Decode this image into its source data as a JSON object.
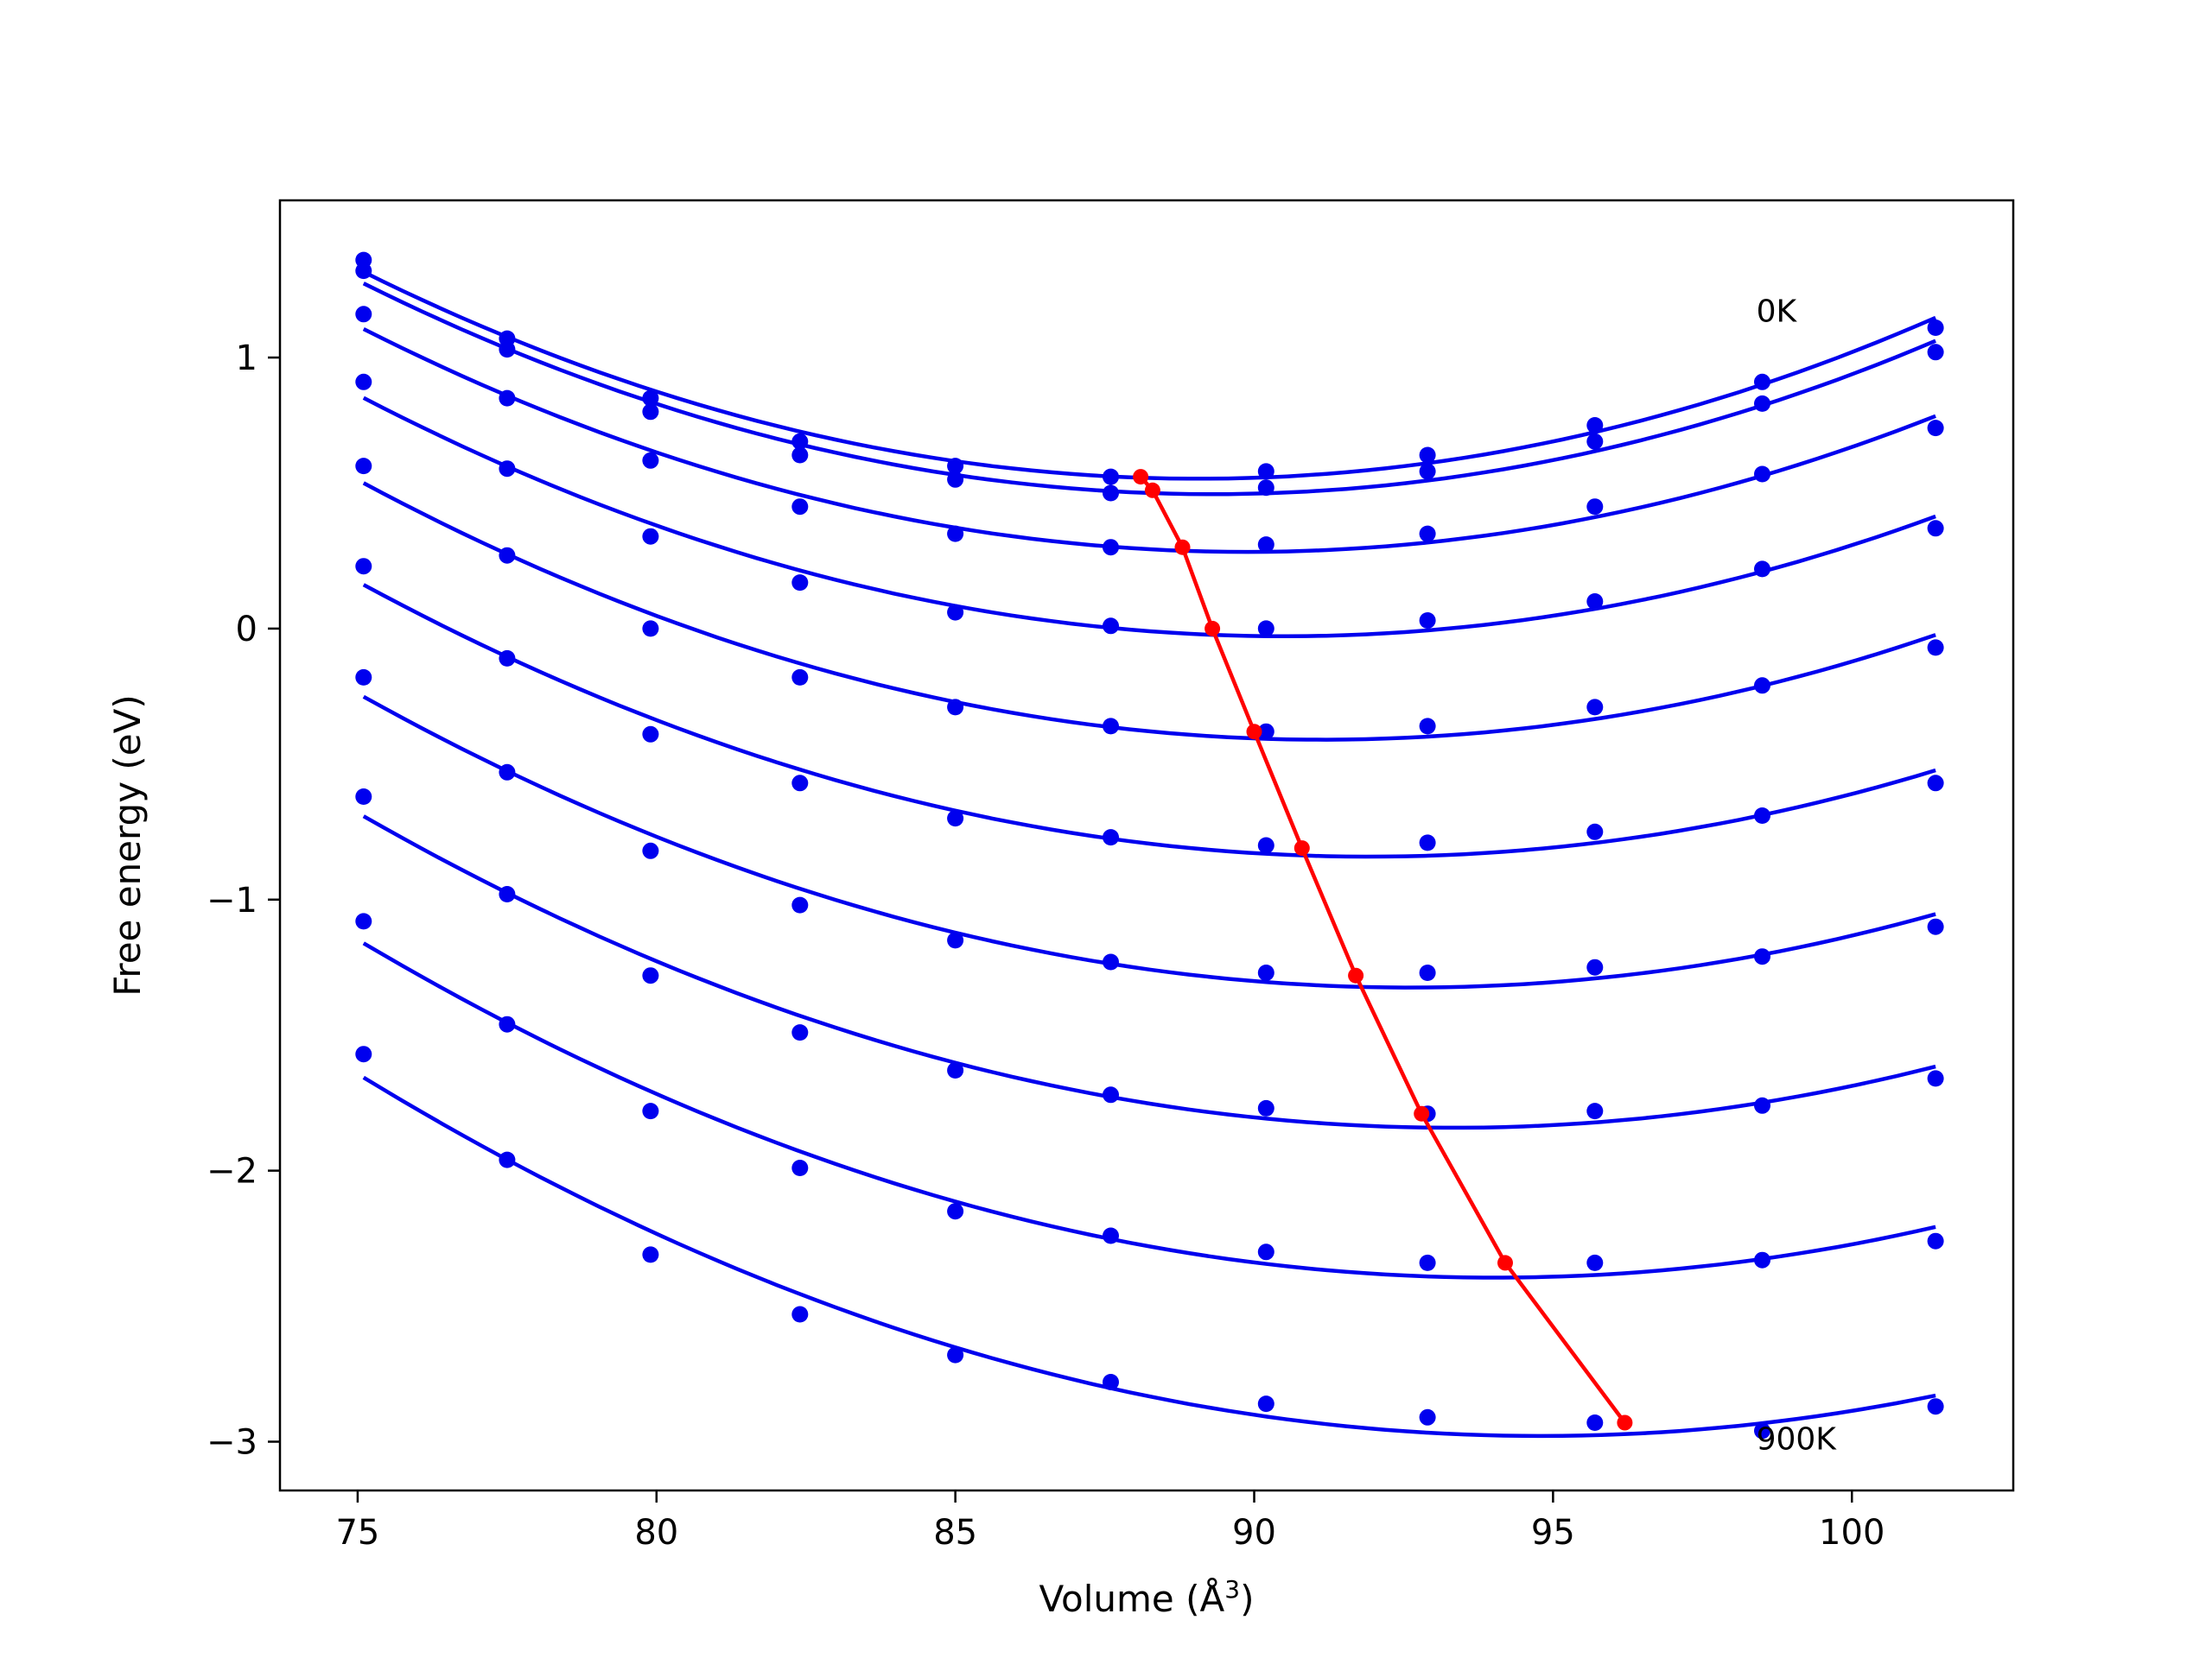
{
  "chart_data": {
    "type": "line",
    "xlabel": "Volume (Å",
    "xlabel_sup": "3",
    "xlabel_end": ")",
    "ylabel": "Free energy (eV)",
    "xlim": [
      73.7,
      102.7
    ],
    "ylim": [
      -3.18,
      1.58
    ],
    "xticks": [
      75,
      80,
      85,
      90,
      95,
      100
    ],
    "xtick_labels": [
      "75",
      "80",
      "85",
      "90",
      "95",
      "100"
    ],
    "yticks": [
      1,
      0,
      -1,
      -2,
      -3
    ],
    "ytick_labels": [
      "1",
      "0",
      "−1",
      "−2",
      "−3"
    ],
    "grid": false,
    "colors": {
      "curves": "#0000ee",
      "minima": "#ff0000",
      "axes": "#000000"
    },
    "annotations": [
      {
        "text": "0K",
        "x": 98.4,
        "y": 1.17
      },
      {
        "text": "900K",
        "x": 98.4,
        "y": -2.99
      }
    ],
    "x": [
      75.1,
      77.5,
      79.9,
      82.4,
      85.0,
      87.6,
      90.2,
      92.9,
      95.7,
      98.5,
      101.4
    ],
    "series": [
      {
        "points": [
          1.36,
          1.07,
          0.85,
          0.69,
          0.6,
          0.56,
          0.58,
          0.64,
          0.75,
          0.91,
          1.11
        ]
      },
      {
        "points": [
          1.32,
          1.03,
          0.8,
          0.64,
          0.55,
          0.5,
          0.52,
          0.58,
          0.69,
          0.83,
          1.02
        ]
      },
      {
        "points": [
          1.16,
          0.85,
          0.62,
          0.45,
          0.35,
          0.3,
          0.31,
          0.35,
          0.45,
          0.57,
          0.74
        ]
      },
      {
        "points": [
          0.91,
          0.59,
          0.34,
          0.17,
          0.06,
          0.01,
          0.0,
          0.03,
          0.1,
          0.22,
          0.37
        ]
      },
      {
        "points": [
          0.6,
          0.27,
          0.0,
          -0.18,
          -0.29,
          -0.36,
          -0.38,
          -0.36,
          -0.29,
          -0.21,
          -0.07
        ]
      },
      {
        "points": [
          0.23,
          -0.11,
          -0.39,
          -0.57,
          -0.7,
          -0.77,
          -0.8,
          -0.79,
          -0.75,
          -0.69,
          -0.57
        ]
      },
      {
        "points": [
          -0.18,
          -0.53,
          -0.82,
          -1.02,
          -1.15,
          -1.23,
          -1.27,
          -1.27,
          -1.25,
          -1.21,
          -1.1
        ]
      },
      {
        "points": [
          -0.62,
          -0.98,
          -1.28,
          -1.49,
          -1.63,
          -1.72,
          -1.77,
          -1.79,
          -1.78,
          -1.76,
          -1.66
        ]
      },
      {
        "points": [
          -1.08,
          -1.46,
          -1.78,
          -1.99,
          -2.15,
          -2.24,
          -2.3,
          -2.34,
          -2.34,
          -2.33,
          -2.26
        ]
      },
      {
        "points": [
          -1.57,
          -1.96,
          -2.31,
          -2.53,
          -2.68,
          -2.78,
          -2.86,
          -2.91,
          -2.93,
          -2.96,
          -2.87
        ]
      }
    ],
    "minima": {
      "x": [
        88.1,
        88.3,
        88.8,
        89.3,
        90.0,
        90.8,
        91.7,
        92.8,
        94.2,
        96.2
      ],
      "y": [
        0.56,
        0.51,
        0.3,
        0.0,
        -0.38,
        -0.81,
        -1.28,
        -1.79,
        -2.34,
        -2.93
      ]
    }
  }
}
